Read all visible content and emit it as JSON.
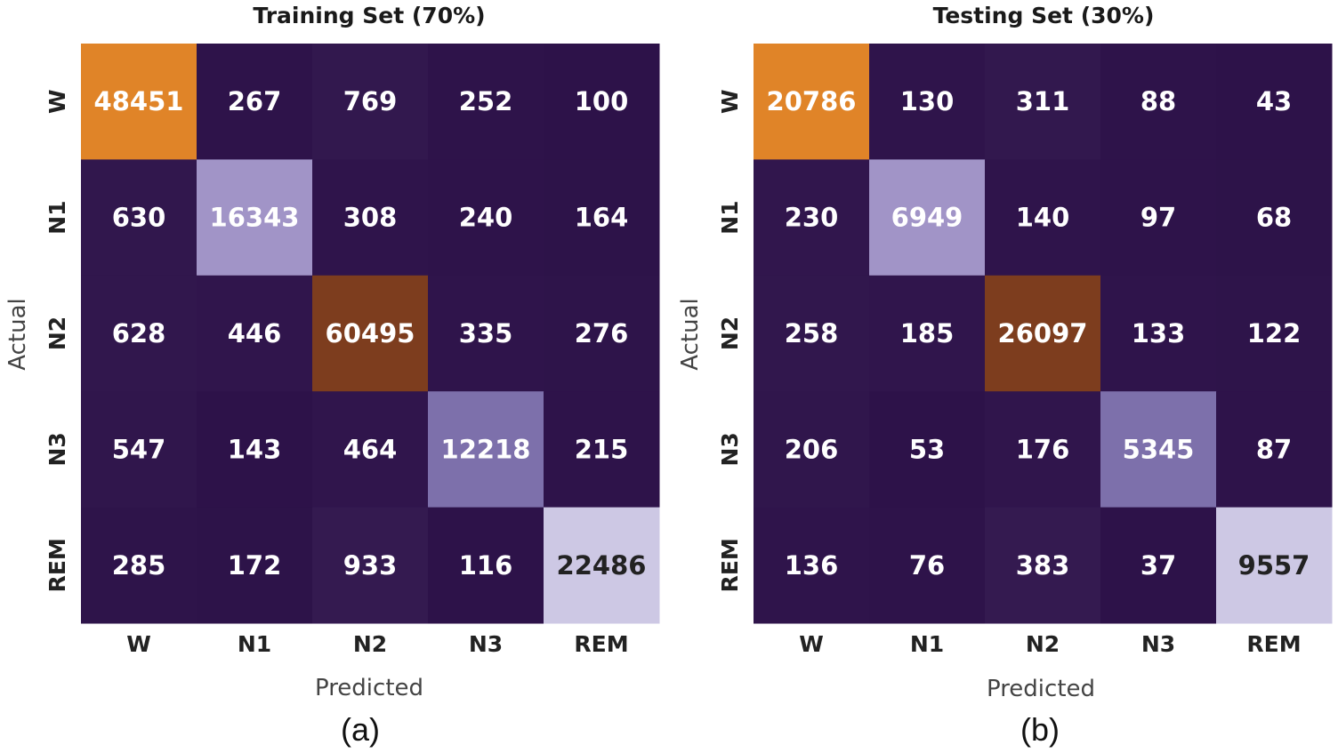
{
  "chart_data": [
    {
      "type": "heatmap",
      "title": "Training Set (70%)",
      "xlabel": "Predicted",
      "ylabel": "Actual",
      "x_categories": [
        "W",
        "N1",
        "N2",
        "N3",
        "REM"
      ],
      "y_categories": [
        "W",
        "N1",
        "N2",
        "N3",
        "REM"
      ],
      "values": [
        [
          48451,
          267,
          769,
          252,
          100
        ],
        [
          630,
          16343,
          308,
          240,
          164
        ],
        [
          628,
          446,
          60495,
          335,
          276
        ],
        [
          547,
          143,
          464,
          12218,
          215
        ],
        [
          285,
          172,
          933,
          116,
          22486
        ]
      ],
      "caption": "(a)"
    },
    {
      "type": "heatmap",
      "title": "Testing Set (30%)",
      "xlabel": "Predicted",
      "ylabel": "Actual",
      "x_categories": [
        "W",
        "N1",
        "N2",
        "N3",
        "REM"
      ],
      "y_categories": [
        "W",
        "N1",
        "N2",
        "N3",
        "REM"
      ],
      "values": [
        [
          20786,
          130,
          311,
          88,
          43
        ],
        [
          230,
          6949,
          140,
          97,
          68
        ],
        [
          258,
          185,
          26097,
          133,
          122
        ],
        [
          206,
          53,
          176,
          5345,
          87
        ],
        [
          136,
          76,
          383,
          37,
          9557
        ]
      ],
      "caption": "(b)"
    }
  ],
  "colors": {
    "background_cell": "#2c1148",
    "W_diag": "#e08428",
    "N1_diag": "#a194c7",
    "N2_diag": "#7d3d1e",
    "N3_diag": "#7d70ab",
    "REM_diag": "#cdc8e4",
    "text_light": "#ffffff",
    "text_dark": "#222222"
  }
}
